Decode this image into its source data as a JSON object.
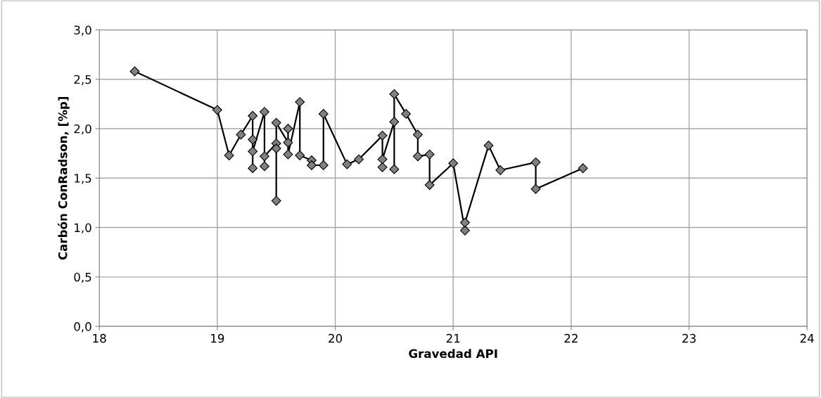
{
  "chart_data": {
    "type": "line",
    "xlabel": "Gravedad API",
    "ylabel": "Carbón ConRadson, [%p]",
    "marker": "diamond",
    "line_style": "solid",
    "grid": true,
    "xlim": [
      18,
      24
    ],
    "xticks": [
      18,
      19,
      20,
      21,
      22,
      23,
      24
    ],
    "ylim": [
      0,
      3
    ],
    "yticks": [
      {
        "value": 0,
        "label": "0,0"
      },
      {
        "value": 0.5,
        "label": "0,5"
      },
      {
        "value": 1,
        "label": "1,0"
      },
      {
        "value": 1.5,
        "label": "1,5"
      },
      {
        "value": 2,
        "label": "2,0"
      },
      {
        "value": 2.5,
        "label": "2,5"
      },
      {
        "value": 3,
        "label": "3,0"
      }
    ],
    "series": [
      {
        "color": "#000000",
        "x": [
          18.3,
          19.0,
          19.1,
          19.2,
          19.3,
          19.3,
          19.3,
          19.3,
          19.4,
          19.4,
          19.4,
          19.5,
          19.5,
          19.5,
          19.5,
          19.6,
          19.6,
          19.6,
          19.7,
          19.7,
          19.8,
          19.8,
          19.9,
          19.9,
          20.1,
          20.2,
          20.4,
          20.4,
          20.4,
          20.5,
          20.5,
          20.5,
          20.6,
          20.7,
          20.7,
          20.8,
          20.8,
          21.0,
          21.1,
          21.1,
          21.3,
          21.4,
          21.7,
          21.7,
          22.1
        ],
        "values": [
          2.58,
          2.19,
          1.73,
          1.94,
          2.13,
          1.89,
          1.6,
          1.77,
          2.17,
          1.62,
          1.72,
          1.85,
          1.8,
          1.27,
          2.06,
          1.86,
          2.0,
          1.74,
          2.27,
          1.73,
          1.68,
          1.63,
          1.63,
          2.15,
          1.64,
          1.69,
          1.93,
          1.61,
          1.69,
          2.07,
          1.59,
          2.35,
          2.15,
          1.94,
          1.72,
          1.74,
          1.43,
          1.65,
          0.97,
          1.05,
          1.83,
          1.58,
          1.66,
          1.39,
          1.6
        ]
      }
    ]
  }
}
